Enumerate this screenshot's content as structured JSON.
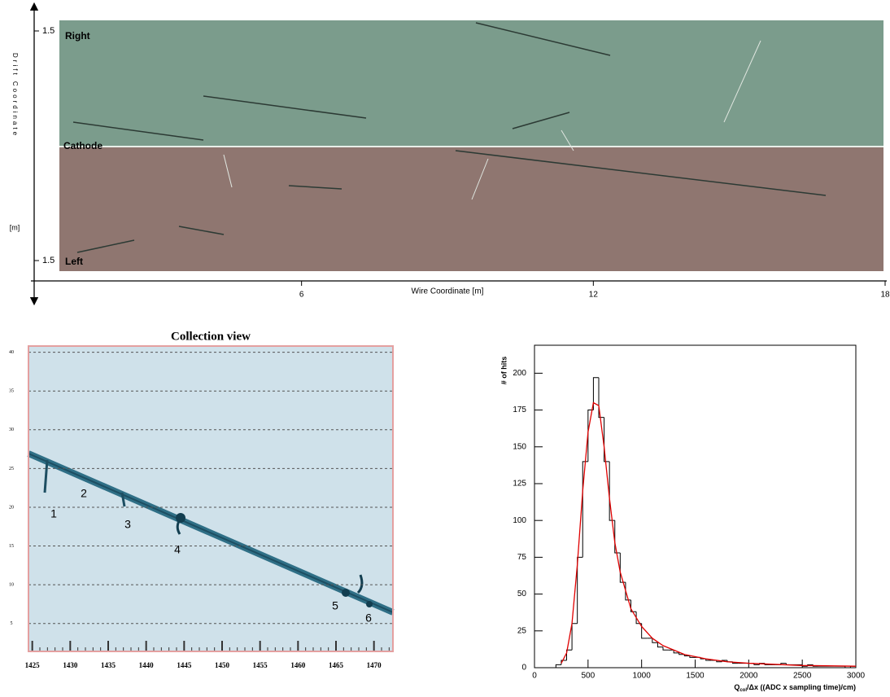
{
  "chart_data": [
    {
      "type": "event-display",
      "xlabel": "Wire Coordinate [m]",
      "ylabel": "Drift Coordinate",
      "yunit": "[m]",
      "xlim": [
        0,
        18
      ],
      "xticks": [
        6,
        12,
        18
      ],
      "ylim": [
        -1.5,
        1.5
      ],
      "yticks": [
        {
          "value": 1.5,
          "label": "1.5"
        },
        {
          "value": -1.5,
          "label": "1.5"
        }
      ],
      "annotations": [
        "Right",
        "Cathode",
        "Left"
      ]
    },
    {
      "type": "image-view",
      "title": "Collection view",
      "xlim": [
        1424.5,
        1472.5
      ],
      "xticks": [
        1425,
        1430,
        1435,
        1440,
        1445,
        1450,
        1455,
        1460,
        1465,
        1470
      ],
      "ylim": [
        1.4,
        40.8
      ],
      "yticks": [
        5,
        10,
        15,
        20,
        25,
        30,
        35,
        40
      ],
      "grid": true,
      "annotations": [
        "1",
        "2",
        "3",
        "4",
        "5",
        "6"
      ]
    },
    {
      "type": "histogram",
      "ylabel": "# of hits",
      "xlabel": [
        "Q",
        "col",
        "/Δx ((ADC x sampling time)/cm)"
      ],
      "xlim": [
        0,
        3000
      ],
      "xticks": [
        0,
        500,
        1000,
        1500,
        2000,
        2500,
        3000
      ],
      "ylim": [
        0,
        219
      ],
      "yticks": [
        0,
        25,
        50,
        75,
        100,
        125,
        150,
        175,
        200
      ],
      "color": "#000000",
      "bins": [
        200,
        250,
        300,
        350,
        400,
        450,
        500,
        550,
        600,
        650,
        700,
        750,
        800,
        850,
        900,
        950,
        1000,
        1050,
        1100,
        1150,
        1200,
        1250,
        1300,
        1350,
        1400,
        1450,
        1500,
        1550,
        1600,
        1650,
        1700,
        1750,
        1800,
        1850,
        1900,
        1950,
        2000,
        2050,
        2100,
        2150,
        2200,
        2250,
        2300,
        2350,
        2400,
        2450,
        2500,
        2550,
        2600,
        2650,
        2700,
        2750,
        2800,
        2850,
        2900,
        2950,
        3000
      ],
      "values": [
        2,
        5,
        12,
        30,
        75,
        140,
        175,
        197,
        170,
        140,
        100,
        78,
        58,
        46,
        38,
        30,
        20,
        20,
        17,
        14,
        12,
        12,
        10,
        9,
        8,
        7,
        7,
        6,
        5,
        5,
        4,
        5,
        4,
        3,
        3,
        3,
        3,
        2,
        3,
        2,
        2,
        2,
        3,
        2,
        2,
        2,
        1,
        2,
        1,
        1,
        1,
        1,
        1,
        1,
        0,
        1
      ],
      "fit": {
        "color": "#e00000",
        "x": [
          250,
          300,
          350,
          400,
          450,
          500,
          550,
          600,
          650,
          700,
          750,
          800,
          900,
          1000,
          1100,
          1200,
          1400,
          1600,
          1800,
          2000,
          2500,
          3000
        ],
        "values": [
          3,
          10,
          30,
          70,
          120,
          160,
          180,
          178,
          150,
          115,
          85,
          65,
          40,
          28,
          20,
          15,
          9,
          6,
          4,
          3,
          1.5,
          1
        ]
      }
    }
  ]
}
